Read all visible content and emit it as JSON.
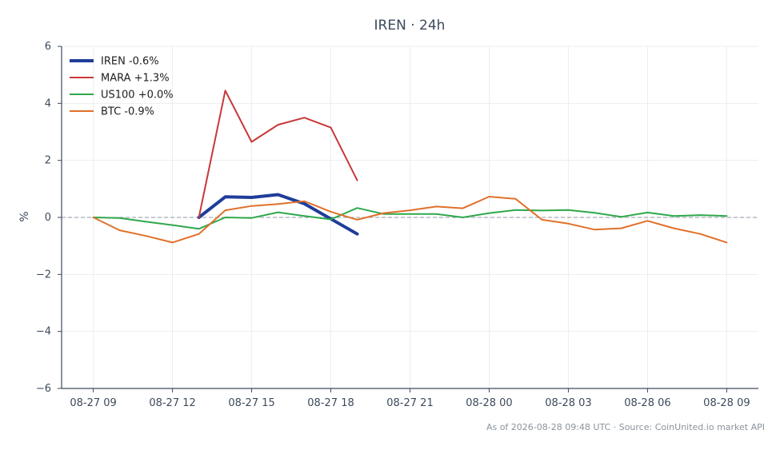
{
  "chart_data": {
    "type": "line",
    "title": "IREN · 24h",
    "ylabel": "%",
    "xlabel": "",
    "ylim": [
      -6,
      6
    ],
    "yticks": [
      6,
      4,
      2,
      0,
      -2,
      -4,
      -6
    ],
    "ytick_labels": [
      "6",
      "4",
      "2",
      "0",
      "−2",
      "−4",
      "−6"
    ],
    "xticks": [
      {
        "t": 0,
        "label": "08-27 09"
      },
      {
        "t": 3,
        "label": "08-27 12"
      },
      {
        "t": 6,
        "label": "08-27 15"
      },
      {
        "t": 9,
        "label": "08-27 18"
      },
      {
        "t": 12,
        "label": "08-27 21"
      },
      {
        "t": 15,
        "label": "08-28 00"
      },
      {
        "t": 18,
        "label": "08-28 03"
      },
      {
        "t": 21,
        "label": "08-28 06"
      },
      {
        "t": 24,
        "label": "08-28 09"
      }
    ],
    "xlim": [
      -1.2,
      25.2
    ],
    "grid": true,
    "zero_line": true,
    "legend_position": "top-left",
    "series": [
      {
        "name": "IREN -0.6%",
        "color": "#1f3d99",
        "width": 4,
        "x": [
          4,
          5,
          6,
          7,
          8,
          9,
          10
        ],
        "y": [
          0.0,
          0.72,
          0.7,
          0.8,
          0.48,
          -0.05,
          -0.58
        ]
      },
      {
        "name": "MARA +1.3%",
        "color": "#c8383a",
        "width": 2,
        "x": [
          4,
          5,
          6,
          7,
          8,
          9,
          10
        ],
        "y": [
          0.0,
          4.45,
          2.65,
          3.25,
          3.5,
          3.15,
          1.3
        ]
      },
      {
        "name": "US100 +0.0%",
        "color": "#2ea84b",
        "width": 2,
        "x": [
          0,
          1,
          2,
          3,
          4,
          5,
          6,
          7,
          8,
          9,
          10,
          11,
          12,
          13,
          14,
          15,
          16,
          17,
          18,
          19,
          20,
          21,
          22,
          23,
          24
        ],
        "y": [
          0.0,
          -0.02,
          -0.15,
          -0.27,
          -0.4,
          0.0,
          -0.02,
          0.18,
          0.05,
          -0.07,
          0.33,
          0.12,
          0.12,
          0.12,
          0.0,
          0.15,
          0.26,
          0.24,
          0.26,
          0.16,
          0.02,
          0.17,
          0.05,
          0.08,
          0.05
        ]
      },
      {
        "name": "BTC -0.9%",
        "color": "#e0702a",
        "width": 2,
        "x": [
          0,
          1,
          2,
          3,
          4,
          5,
          6,
          7,
          8,
          9,
          10,
          11,
          12,
          13,
          14,
          15,
          16,
          17,
          18,
          19,
          20,
          21,
          22,
          23,
          24
        ],
        "y": [
          0.0,
          -0.45,
          -0.65,
          -0.88,
          -0.58,
          0.25,
          0.4,
          0.47,
          0.57,
          0.2,
          -0.08,
          0.15,
          0.25,
          0.38,
          0.32,
          0.73,
          0.65,
          -0.08,
          -0.22,
          -0.43,
          -0.38,
          -0.12,
          -0.38,
          -0.58,
          -0.88
        ]
      }
    ]
  },
  "footer": {
    "source_note": "As of 2026-08-28 09:48 UTC · Source: CoinUnited.io market API"
  }
}
